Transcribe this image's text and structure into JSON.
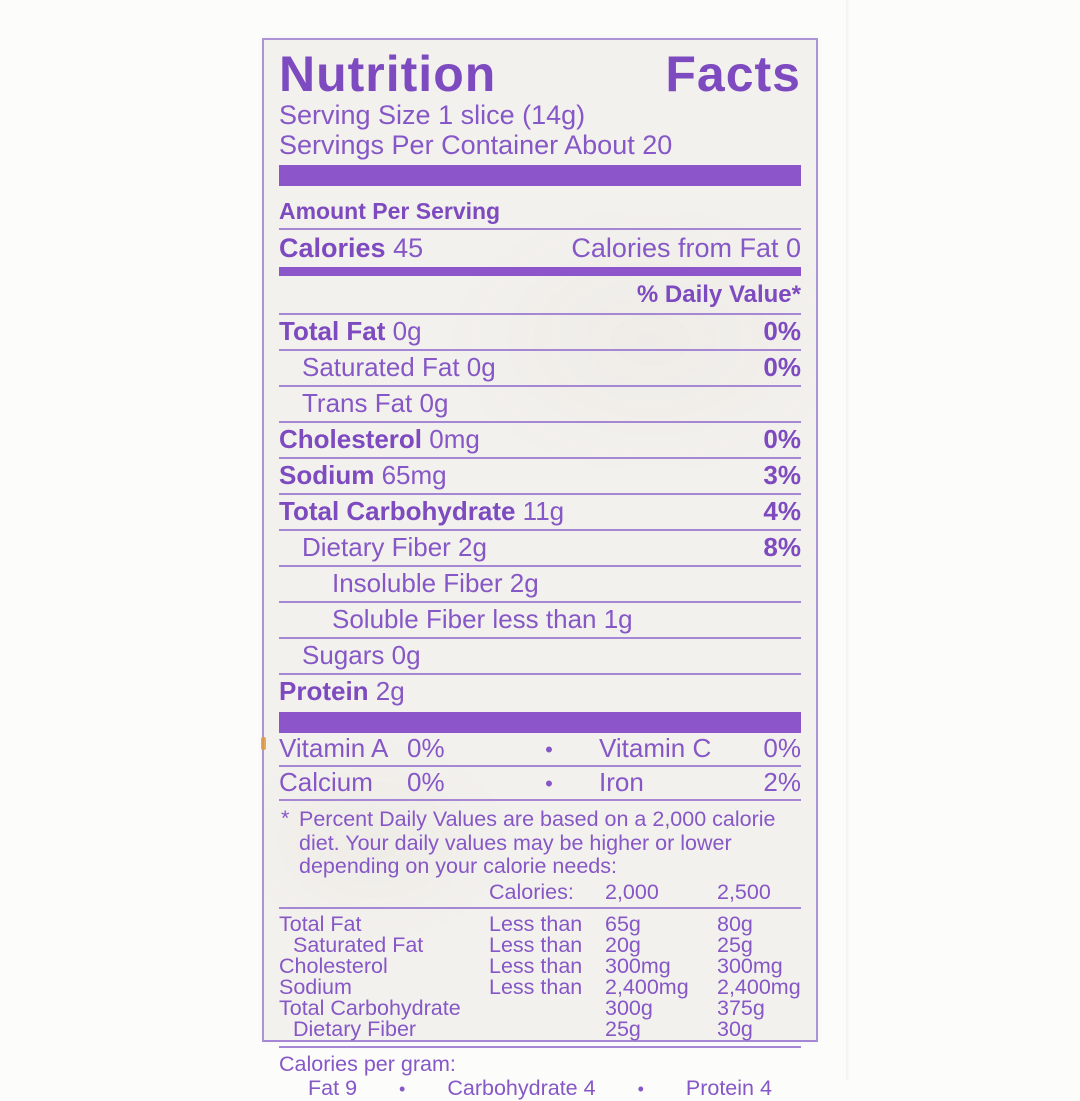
{
  "label": {
    "title_word1": "Nutrition",
    "title_word2": "Facts",
    "serving_size": "Serving Size 1 slice (14g)",
    "servings_per_container": "Servings Per Container About 20",
    "amount_per_serving": "Amount Per Serving",
    "calories_label": "Calories",
    "calories_value": "45",
    "calories_from_fat": "Calories from Fat 0",
    "daily_value_header": "% Daily Value*",
    "nutrients": [
      {
        "label": "Total Fat",
        "amount": "0g",
        "dv": "0%",
        "bold": true,
        "indent": 0
      },
      {
        "label": "Saturated Fat",
        "amount": "0g",
        "dv": "0%",
        "bold": false,
        "indent": 1
      },
      {
        "label": "Trans Fat",
        "amount": "0g",
        "dv": "",
        "bold": false,
        "indent": 1
      },
      {
        "label": "Cholesterol",
        "amount": "0mg",
        "dv": "0%",
        "bold": true,
        "indent": 0
      },
      {
        "label": "Sodium",
        "amount": "65mg",
        "dv": "3%",
        "bold": true,
        "indent": 0
      },
      {
        "label": "Total Carbohydrate",
        "amount": "11g",
        "dv": "4%",
        "bold": true,
        "indent": 0
      },
      {
        "label": "Dietary Fiber",
        "amount": "2g",
        "dv": "8%",
        "bold": false,
        "indent": 1
      },
      {
        "label": "Insoluble Fiber",
        "amount": "2g",
        "dv": "",
        "bold": false,
        "indent": 2
      },
      {
        "label": "Soluble Fiber",
        "amount": "less than 1g",
        "dv": "",
        "bold": false,
        "indent": 2
      },
      {
        "label": "Sugars",
        "amount": "0g",
        "dv": "",
        "bold": false,
        "indent": 1
      },
      {
        "label": "Protein",
        "amount": "2g",
        "dv": "",
        "bold": true,
        "indent": 0
      }
    ],
    "vitamins": [
      {
        "name1": "Vitamin A",
        "value1": "0%",
        "name2": "Vitamin C",
        "value2": "0%"
      },
      {
        "name1": "Calcium",
        "value1": "0%",
        "name2": "Iron",
        "value2": "2%"
      }
    ],
    "footnote_marker": "*",
    "footnote_text": "Percent Daily Values are based on a 2,000 calorie diet. Your daily values may be higher or lower depending on your calorie needs:",
    "calories_header_row": {
      "label": "Calories:",
      "col2000": "2,000",
      "col2500": "2,500"
    },
    "dv_table": [
      {
        "name": "Total Fat",
        "qualifier": "Less than",
        "v2000": "65g",
        "v2500": "80g",
        "indent": 0
      },
      {
        "name": "Saturated Fat",
        "qualifier": "Less than",
        "v2000": "20g",
        "v2500": "25g",
        "indent": 1
      },
      {
        "name": "Cholesterol",
        "qualifier": "Less than",
        "v2000": "300mg",
        "v2500": "300mg",
        "indent": 0
      },
      {
        "name": "Sodium",
        "qualifier": "Less than",
        "v2000": "2,400mg",
        "v2500": "2,400mg",
        "indent": 0
      },
      {
        "name": "Total Carbohydrate",
        "qualifier": "",
        "v2000": "300g",
        "v2500": "375g",
        "indent": 0
      },
      {
        "name": "Dietary Fiber",
        "qualifier": "",
        "v2000": "25g",
        "v2500": "30g",
        "indent": 1
      }
    ],
    "calories_per_gram_label": "Calories per gram:",
    "calories_per_gram": [
      {
        "name": "Fat",
        "value": "9"
      },
      {
        "name": "Carbohydrate",
        "value": "4"
      },
      {
        "name": "Protein",
        "value": "4"
      }
    ],
    "bullet": "•"
  },
  "colors": {
    "ink": "#8657c6",
    "ink_bold": "#7d4ac0",
    "bar": "#8d55ca",
    "rule": "#a687d5",
    "label_bg": "#f3f1ed",
    "page_bg": "#fcfcfb"
  }
}
